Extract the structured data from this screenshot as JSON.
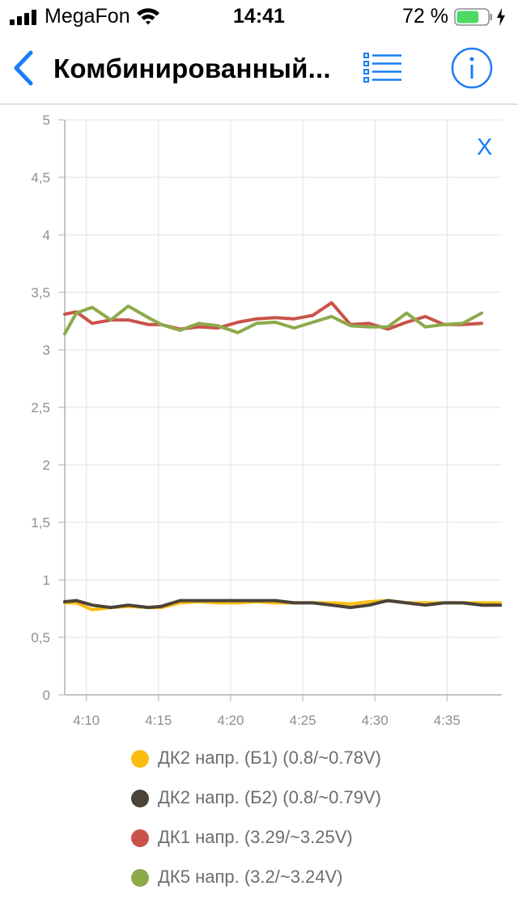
{
  "status_bar": {
    "carrier": "MegaFon",
    "time": "14:41",
    "battery_percent": "72 %",
    "battery_level": 0.72,
    "charging_icon": "bolt-icon"
  },
  "nav": {
    "title": "Комбинированный...",
    "back_icon": "chevron-left-icon",
    "list_icon": "list-icon",
    "info_icon": "info-icon",
    "accent_color": "#1a7df5"
  },
  "chart_close_label": "X",
  "chart_data": {
    "type": "line",
    "x_ticks": [
      "4:10",
      "4:15",
      "4:20",
      "4:25",
      "4:30",
      "4:35"
    ],
    "x_tick_minutes": [
      10,
      15,
      20,
      25,
      30,
      35
    ],
    "xlim": [
      8.5,
      38.8
    ],
    "ylim": [
      0,
      5
    ],
    "y_ticks": [
      "0",
      "0,5",
      "1",
      "1,5",
      "2",
      "2,5",
      "3",
      "3,5",
      "4",
      "4,5",
      "5"
    ],
    "y_tick_values": [
      0,
      0.5,
      1,
      1.5,
      2,
      2.5,
      3,
      3.5,
      4,
      4.5,
      5
    ],
    "grid": true,
    "x": [
      8.5,
      9.3,
      10.4,
      11.7,
      12.9,
      14.3,
      15.2,
      16.5,
      17.8,
      19.1,
      20.5,
      21.8,
      23.1,
      24.4,
      25.7,
      27.0,
      28.3,
      29.6,
      30.9,
      32.2,
      33.5,
      34.8,
      36.1,
      37.4,
      38.7
    ],
    "series": [
      {
        "name": "ДК2 напр. (Б1) (0.8/~0.78V)",
        "color": "#fbbd10",
        "values": [
          0.8,
          0.8,
          0.74,
          0.76,
          0.77,
          0.76,
          0.76,
          0.8,
          0.81,
          0.8,
          0.8,
          0.81,
          0.8,
          0.8,
          0.8,
          0.8,
          0.79,
          0.81,
          0.82,
          0.8,
          0.8,
          0.8,
          0.8,
          0.8,
          0.8
        ]
      },
      {
        "name": "ДК2 напр. (Б2) (0.8/~0.79V)",
        "color": "#4b4338",
        "values": [
          0.81,
          0.82,
          0.78,
          0.76,
          0.78,
          0.76,
          0.77,
          0.82,
          0.82,
          0.82,
          0.82,
          0.82,
          0.82,
          0.8,
          0.8,
          0.78,
          0.76,
          0.78,
          0.82,
          0.8,
          0.78,
          0.8,
          0.8,
          0.78,
          0.78
        ]
      },
      {
        "name": "ДК1 напр. (3.29/~3.25V)",
        "color": "#c9534a",
        "values": [
          3.31,
          3.33,
          3.23,
          3.26,
          3.26,
          3.22,
          3.22,
          3.18,
          3.2,
          3.19,
          3.24,
          3.27,
          3.28,
          3.27,
          3.3,
          3.41,
          3.22,
          3.23,
          3.18,
          3.24,
          3.29,
          3.22,
          3.22,
          3.23,
          null
        ]
      },
      {
        "name": "ДК5 напр. (3.2/~3.24V)",
        "color": "#8daa4b",
        "values": [
          3.14,
          3.32,
          3.37,
          3.26,
          3.38,
          3.28,
          3.22,
          3.17,
          3.23,
          3.21,
          3.15,
          3.23,
          3.24,
          3.19,
          3.24,
          3.29,
          3.21,
          3.2,
          3.2,
          3.32,
          3.2,
          3.22,
          3.23,
          3.32,
          null
        ]
      }
    ]
  }
}
